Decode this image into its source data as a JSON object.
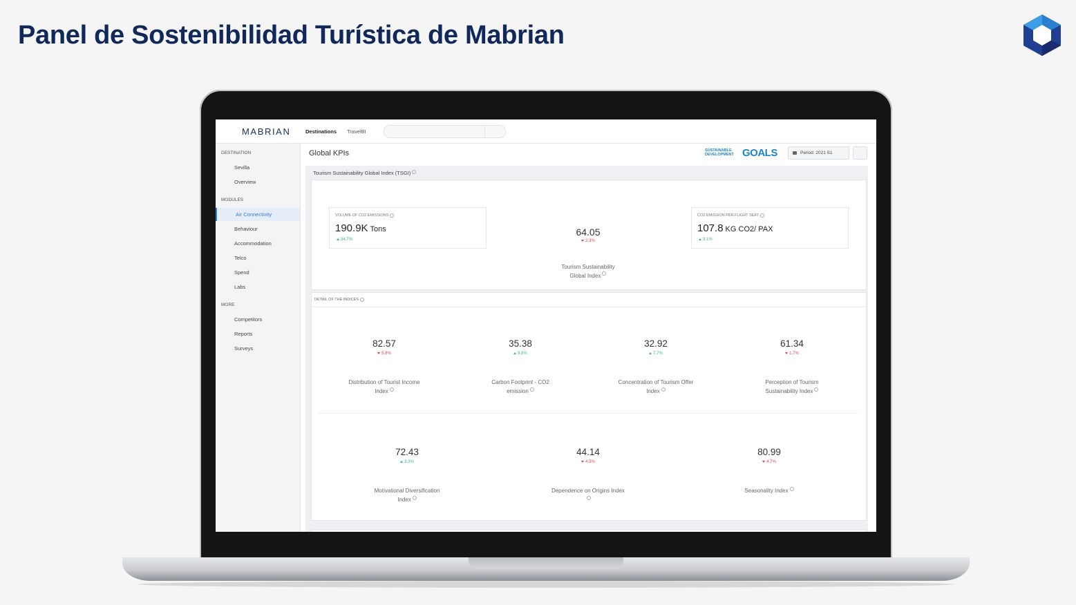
{
  "header": {
    "title": "Panel de Sostenibilidad Turística de Mabrian"
  },
  "app": {
    "brand": "MABRIAN",
    "nav": [
      "Destinations",
      "TravelBI"
    ],
    "sidebar": [
      {
        "title": "DESTINATION",
        "items": [
          {
            "label": "Sevilla"
          },
          {
            "label": "Overview"
          }
        ]
      },
      {
        "title": "MODULES",
        "items": [
          {
            "label": "Air Connectivity",
            "submenu": true,
            "selected": true
          },
          {
            "label": "Behaviour",
            "submenu": true
          },
          {
            "label": "Accommodation",
            "submenu": true
          },
          {
            "label": "Telco"
          },
          {
            "label": "Spend",
            "submenu": true
          },
          {
            "label": "Labs",
            "submenu": true
          }
        ]
      },
      {
        "title": "MORE",
        "items": [
          {
            "label": "Competitors",
            "submenu": true
          },
          {
            "label": "Reports"
          },
          {
            "label": "Surveys",
            "submenu": true
          }
        ]
      }
    ],
    "page_title": "Global KPIs",
    "sdg": {
      "line1": "SUSTAINABLE",
      "line2": "DEVELOPMENT",
      "word": "GOALS"
    },
    "period": "Period: 2021 S1",
    "gauge_range": [
      0,
      100
    ],
    "tsgi": {
      "title": "Tourism Sustainability Global Index (TSGI)",
      "gauge": {
        "value": 64.05,
        "change": "2.3%",
        "direction": "down",
        "label": "Tourism Sustainability Global Index",
        "color": "#9fd9b8"
      },
      "kpis": [
        {
          "label": "VOLUME OF CO2 EMISSIONS",
          "value": "190.9K",
          "unit": "Tons",
          "change": "34.7%",
          "direction": "up"
        },
        {
          "label": "CO2 EMISSION PER FLIGHT SEAT",
          "value": "107.8",
          "unit": "KG CO2/ PAX",
          "change": "9.1%",
          "direction": "up"
        }
      ]
    },
    "indices": {
      "title": "DETAIL OF THE INDICES",
      "items": [
        {
          "value": 82.57,
          "change": "5.8%",
          "direction": "down",
          "label": "Distribution of Tourist Income Index",
          "color": "#ec8a64"
        },
        {
          "value": 35.38,
          "change": "9.8%",
          "direction": "up",
          "label": "Carbon Footprint - CO2 emission",
          "color": "#c9e0f1"
        },
        {
          "value": 32.92,
          "change": "7.7%",
          "direction": "up",
          "label": "Concentration of Tourism Offer Index",
          "color": "#9a6fd6"
        },
        {
          "value": 61.34,
          "change": "1.7%",
          "direction": "down",
          "label": "Perception of Tourism Sustainability Index",
          "color": "#5b9bc9"
        },
        {
          "value": 72.43,
          "change": "3.3%",
          "direction": "up",
          "label": "Motivational Diversification Index",
          "color": "#f6e2a2"
        },
        {
          "value": 44.14,
          "change": "4.5%",
          "direction": "down",
          "label": "Dependence on Origins Index",
          "color": "#e08fc6"
        },
        {
          "value": 80.99,
          "change": "4.7%",
          "direction": "down",
          "label": "Seasonality Index",
          "color": "#5a6779"
        }
      ]
    }
  }
}
